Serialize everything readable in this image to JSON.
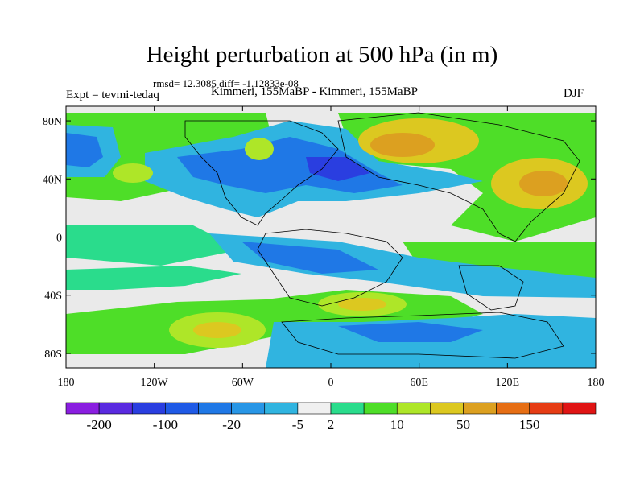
{
  "title": "Height perturbation at 500 hPa (in m)",
  "stats": "rmsd= 12.3085 diff= -1.12833e-08",
  "left_label": "Expt = tevmi-tedaq",
  "center_label": "Kimmeri, 155MaBP - Kimmeri, 155MaBP",
  "right_label": "DJF",
  "x_ticks": [
    {
      "label": "180",
      "lon": -180
    },
    {
      "label": "120W",
      "lon": -120
    },
    {
      "label": "60W",
      "lon": -60
    },
    {
      "label": "0",
      "lon": 0
    },
    {
      "label": "60E",
      "lon": 60
    },
    {
      "label": "120E",
      "lon": 120
    },
    {
      "label": "180",
      "lon": 180
    }
  ],
  "y_ticks": [
    {
      "label": "80N",
      "lat": 80
    },
    {
      "label": "40N",
      "lat": 40
    },
    {
      "label": "0",
      "lat": 0
    },
    {
      "label": "40S",
      "lat": -40
    },
    {
      "label": "80S",
      "lat": -80
    }
  ],
  "colorbar": {
    "colors": [
      "#8a1ee0",
      "#5a2ae0",
      "#2a3ee0",
      "#1f5ae6",
      "#1f78e6",
      "#2896e6",
      "#30b4e0",
      "#f0f0f0",
      "#2adc8c",
      "#4ede28",
      "#aee628",
      "#dcc820",
      "#dca020",
      "#e66e14",
      "#e63c14",
      "#e01414"
    ],
    "labels": [
      {
        "text": "-200",
        "index": 1
      },
      {
        "text": "-100",
        "index": 3
      },
      {
        "text": "-20",
        "index": 5
      },
      {
        "text": "-5",
        "index": 7
      },
      {
        "text": "2",
        "index": 8
      },
      {
        "text": "10",
        "index": 10
      },
      {
        "text": "50",
        "index": 12
      },
      {
        "text": "150",
        "index": 14
      }
    ]
  }
}
